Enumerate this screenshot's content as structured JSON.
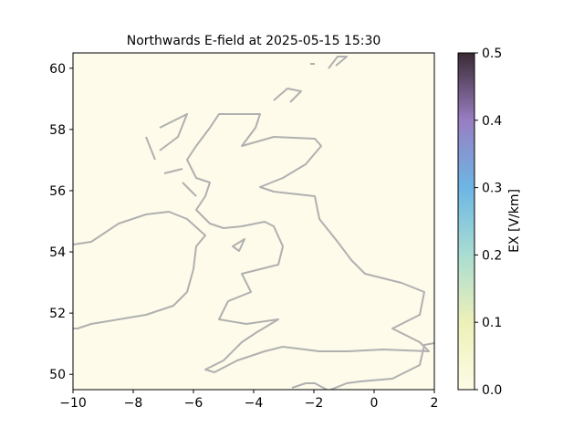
{
  "chart_data": {
    "type": "map",
    "title": "Northwards E-field at 2025-05-15 15:30",
    "fill_color": "#fefbea",
    "coast_color": "#b0b0b0",
    "xlim": [
      -10,
      2
    ],
    "ylim": [
      49.5,
      60.5
    ],
    "xticks": [
      {
        "value": -10,
        "label": "−10"
      },
      {
        "value": -8,
        "label": "−8"
      },
      {
        "value": -6,
        "label": "−6"
      },
      {
        "value": -4,
        "label": "−4"
      },
      {
        "value": -2,
        "label": "−2"
      },
      0,
      2
    ],
    "yticks": [
      50,
      52,
      54,
      56,
      58,
      60
    ],
    "colorbar": {
      "label": "EX [V/km]",
      "lim": [
        0,
        0.5
      ],
      "ticks": [
        {
          "value": 0,
          "label": "0.0"
        },
        0.1,
        0.2,
        0.3,
        0.4,
        0.5
      ],
      "colors": [
        "#fefbe6",
        "#eef0b8",
        "#a9ddd2",
        "#6db6e4",
        "#987ec2",
        "#3a2a33"
      ]
    }
  }
}
